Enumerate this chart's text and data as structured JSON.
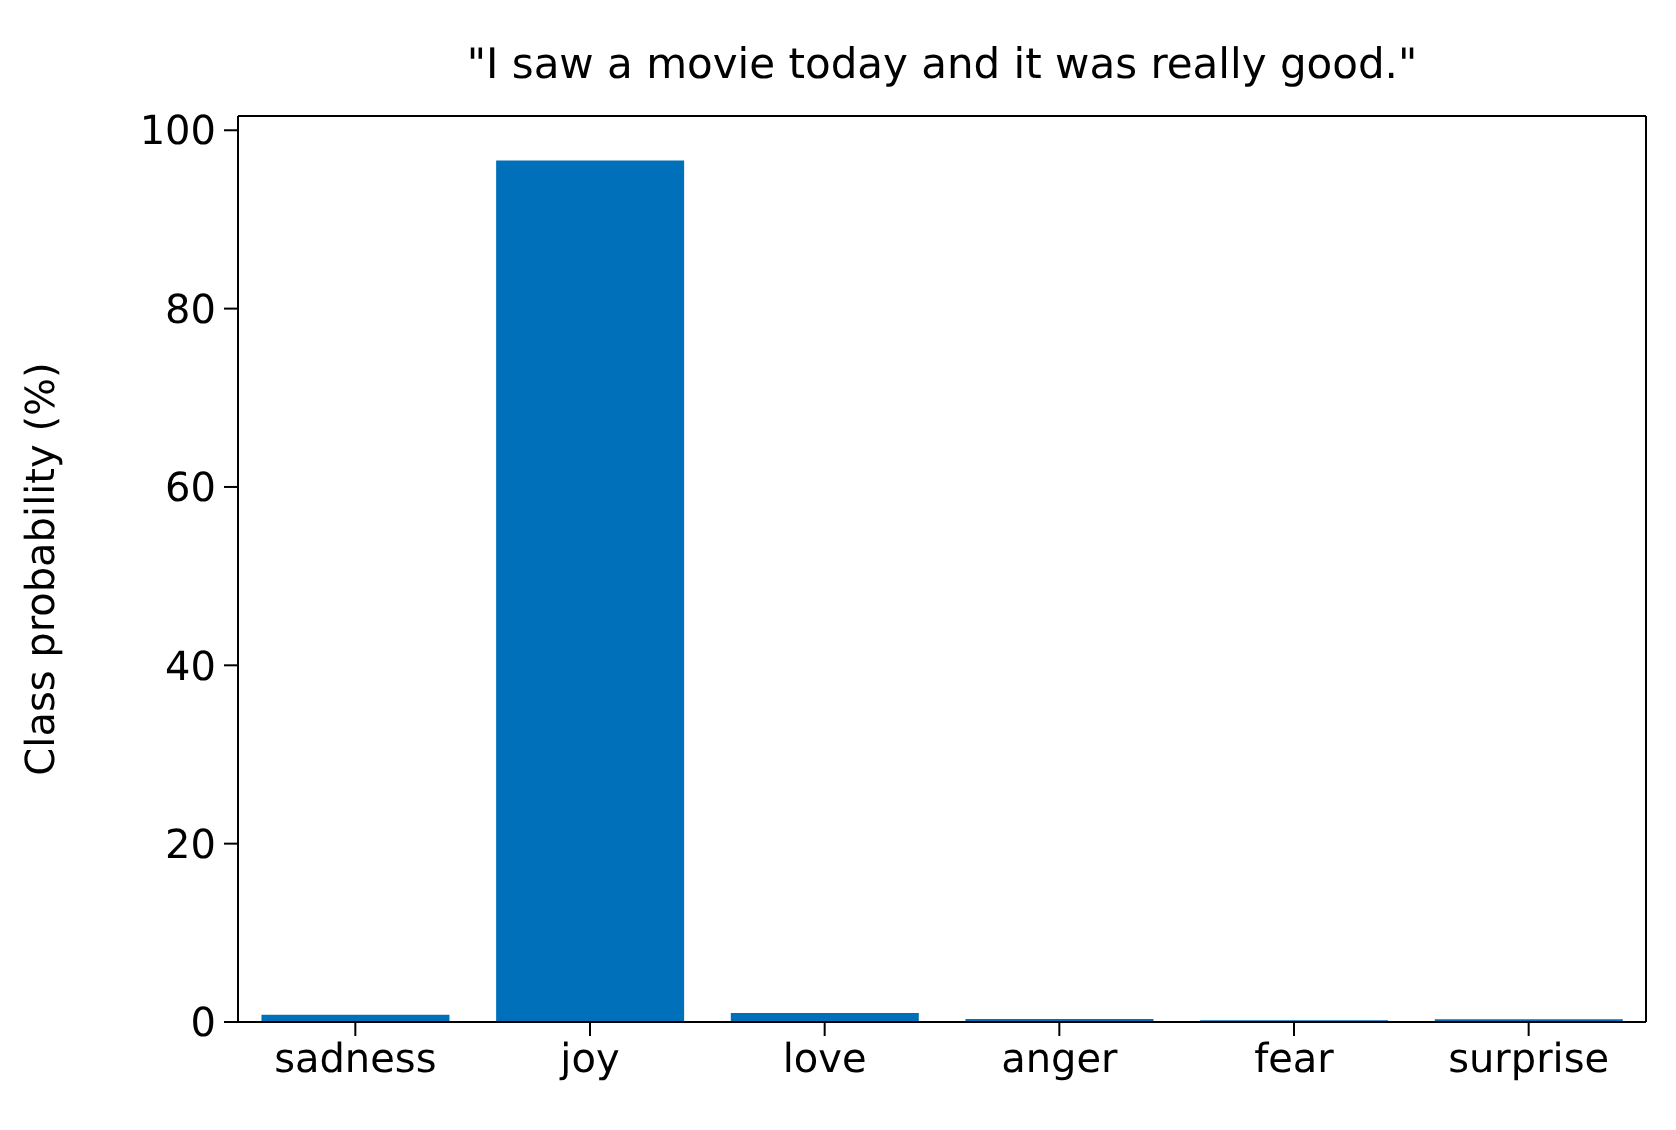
{
  "chart_data": {
    "type": "bar",
    "title": "\"I saw a movie today and it was really good.\"",
    "ylabel": "Class probability (%)",
    "categories": [
      "sadness",
      "joy",
      "love",
      "anger",
      "fear",
      "surprise"
    ],
    "values": [
      0.8,
      96.6,
      1.0,
      0.35,
      0.2,
      0.3
    ],
    "color": "#0070bb",
    "ylim": [
      0,
      101.6
    ],
    "yticks": [
      0,
      20,
      40,
      60,
      80,
      100
    ],
    "grid": false,
    "legend": false
  }
}
